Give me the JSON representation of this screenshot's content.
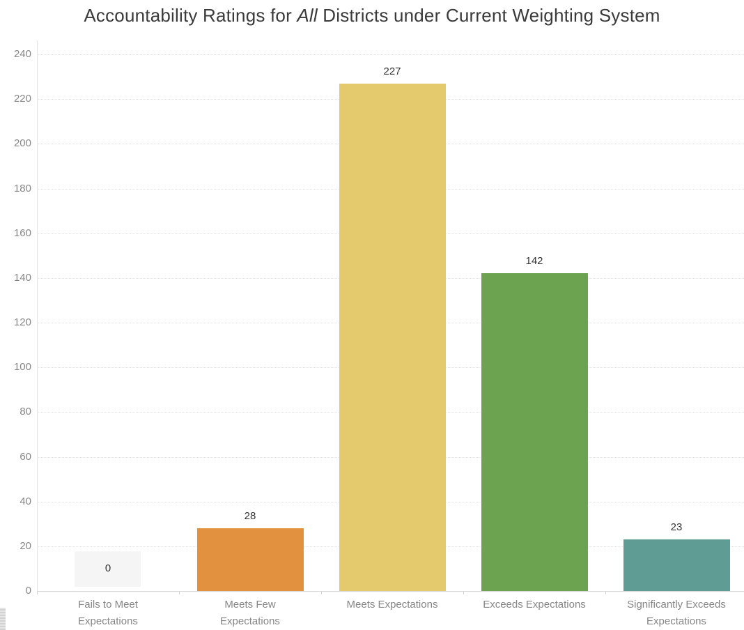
{
  "title": {
    "prefix": "Accountability Ratings for ",
    "italic": "All",
    "suffix": " Districts under Current Weighting System"
  },
  "chart_data": {
    "type": "bar",
    "title": "Accountability Ratings for All Districts under Current Weighting System",
    "categories": [
      "Fails to Meet Expectations",
      "Meets Few Expectations",
      "Meets Expectations",
      "Exceeds Expectations",
      "Significantly Exceeds Expectations"
    ],
    "x_tick_display": [
      "Fails to Meet\nExpectations",
      "Meets Few\nExpectations",
      "Meets Expectations",
      "Exceeds Expectations",
      "Significantly Exceeds\nExpectations"
    ],
    "values": [
      0,
      28,
      227,
      142,
      23
    ],
    "value_labels": [
      "0",
      "28",
      "227",
      "142",
      "23"
    ],
    "bar_colors": [
      null,
      "#E2923E",
      "#E5CA6D",
      "#6BA351",
      "#5F9C94"
    ],
    "y_axis": {
      "min": 0,
      "max": 240,
      "tick_interval": 20,
      "tick_labels": [
        "0",
        "20",
        "40",
        "60",
        "80",
        "100",
        "120",
        "140",
        "160",
        "180",
        "200",
        "220",
        "240"
      ]
    },
    "xlabel": "",
    "ylabel": "",
    "grid": true,
    "legend": false
  },
  "colors": {
    "gridline": "#e0e0e0",
    "axis_line": "#d6d6d6",
    "tick_text": "#878787",
    "category_text": "#868686",
    "value_text": "#333333",
    "title_text": "#3a3a3a",
    "zero_label_box": "#f5f5f5",
    "background": "#ffffff"
  }
}
